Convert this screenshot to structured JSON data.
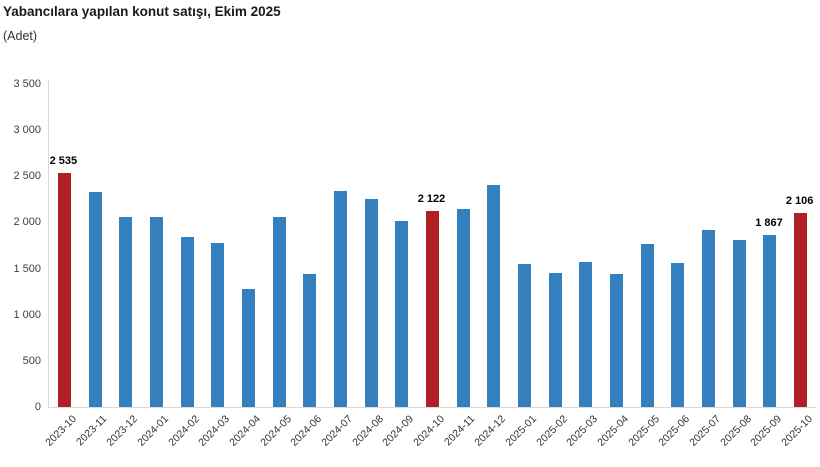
{
  "chart_data": {
    "type": "bar",
    "title": "Yabancılara yapılan konut satışı, Ekim 2025",
    "subtitle": "(Adet)",
    "xlabel": "",
    "ylabel": "Adet",
    "ylim": [
      0,
      3500
    ],
    "grid": false,
    "legend": false,
    "categories": [
      "2023-10",
      "2023-11",
      "2023-12",
      "2024-01",
      "2024-02",
      "2024-03",
      "2024-04",
      "2024-05",
      "2024-06",
      "2024-07",
      "2024-08",
      "2024-09",
      "2024-10",
      "2024-11",
      "2024-12",
      "2025-01",
      "2025-02",
      "2025-03",
      "2025-04",
      "2025-05",
      "2025-06",
      "2025-07",
      "2025-08",
      "2025-09",
      "2025-10"
    ],
    "values": [
      2535,
      2335,
      2060,
      2055,
      1840,
      1775,
      1275,
      2060,
      1445,
      2345,
      2250,
      2020,
      2122,
      2150,
      2410,
      1545,
      1455,
      1575,
      1445,
      1765,
      1560,
      1915,
      1815,
      1867,
      2106
    ],
    "highlight_indices": [
      0,
      12,
      24
    ],
    "labeled_points": [
      {
        "index": 0,
        "label": "2 535"
      },
      {
        "index": 12,
        "label": "2 122"
      },
      {
        "index": 23,
        "label": "1 867"
      },
      {
        "index": 24,
        "label": "2 106"
      }
    ],
    "yticks": [
      {
        "value": 0,
        "label": "0"
      },
      {
        "value": 500,
        "label": "500"
      },
      {
        "value": 1000,
        "label": "1 000"
      },
      {
        "value": 1500,
        "label": "1 500"
      },
      {
        "value": 2000,
        "label": "2 000"
      },
      {
        "value": 2500,
        "label": "2 500"
      },
      {
        "value": 3000,
        "label": "3 000"
      },
      {
        "value": 3500,
        "label": "3 500"
      }
    ],
    "colors": {
      "bar_default": "#3480BE",
      "bar_highlight": "#B01F24",
      "axis_line": "#D9D9D9",
      "title_text": "#1A1A1A",
      "tick_text": "#404040"
    }
  }
}
